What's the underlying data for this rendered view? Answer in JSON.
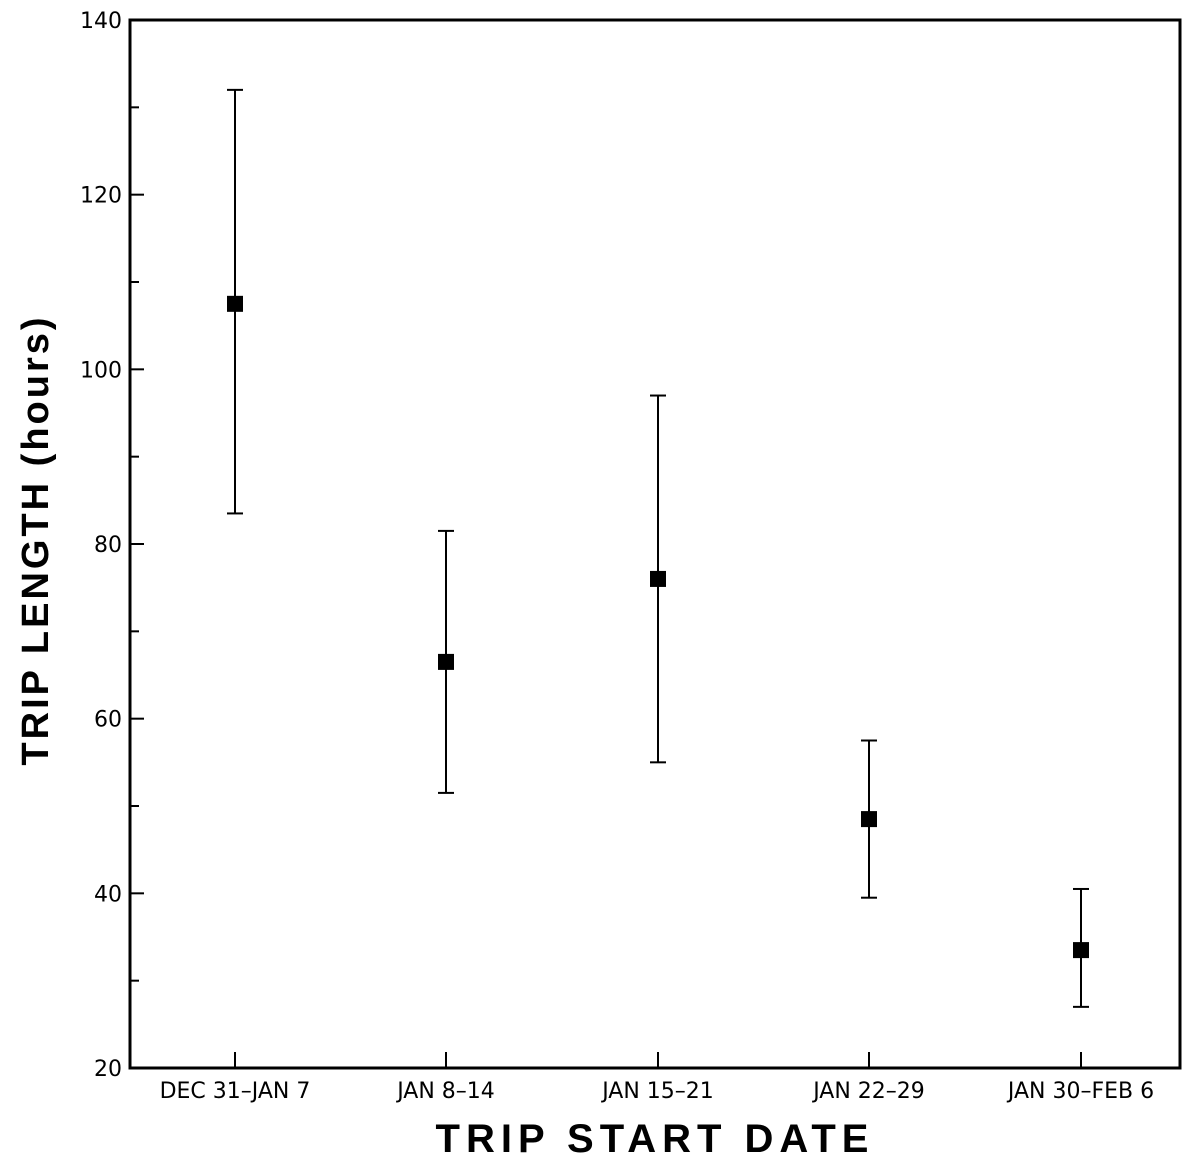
{
  "chart_data": {
    "type": "scatter",
    "title": "",
    "xlabel": "TRIP START DATE",
    "ylabel": "TRIP LENGTH (hours)",
    "categories": [
      "DEC 31-JAN 7",
      "JAN 8-14",
      "JAN 15-21",
      "JAN 22-29",
      "JAN 30-FEB 6"
    ],
    "tick_labels": [
      "DEC  31–JAN  7",
      "JAN  8–14",
      "JAN  15–21",
      "JAN  22–29",
      "JAN  30–FEB  6"
    ],
    "ylim": [
      20,
      140
    ],
    "yticks": [
      20,
      40,
      60,
      80,
      100,
      120,
      140
    ],
    "grid": false,
    "series": [
      {
        "values": [
          107.5,
          66.5,
          76,
          48.5,
          33.5
        ],
        "error_low": [
          83.5,
          51.5,
          55,
          39.5,
          27
        ],
        "error_high": [
          132,
          81.5,
          97,
          57.5,
          40.5
        ]
      }
    ],
    "marker": "square",
    "color": "#000000"
  }
}
